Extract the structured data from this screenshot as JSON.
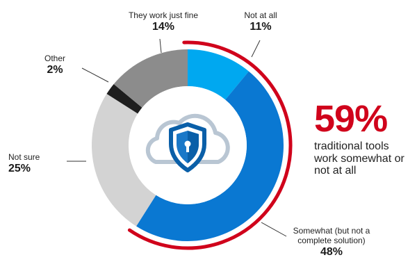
{
  "chart_data": {
    "type": "pie",
    "variant": "donut",
    "slices": [
      {
        "label": "Not at all",
        "value": 11,
        "display": "11%",
        "color": "#00a8f0"
      },
      {
        "label": "Somewhat (but not a complete solution)",
        "value": 48,
        "display": "48%",
        "color": "#0a78d2"
      },
      {
        "label": "Not sure",
        "value": 25,
        "display": "25%",
        "color": "#d3d3d3"
      },
      {
        "label": "Other",
        "value": 2,
        "display": "2%",
        "color": "#1e1e1e"
      },
      {
        "label": "They work just fine",
        "value": 14,
        "display": "14%",
        "color": "#8c8c8c"
      }
    ],
    "highlight": {
      "value": "59%",
      "text": "traditional tools work somewhat or not at all",
      "color": "#d0021b"
    },
    "center_icon": "cloud-shield-lock-icon"
  },
  "labels": {
    "fine": {
      "name": "They work just fine",
      "pct": "14%"
    },
    "notatall": {
      "name": "Not at all",
      "pct": "11%"
    },
    "other": {
      "name": "Other",
      "pct": "2%"
    },
    "notsure": {
      "name": "Not sure",
      "pct": "25%"
    },
    "somewhat": {
      "name": "Somewhat (but not a complete solution)",
      "pct": "48%"
    }
  }
}
